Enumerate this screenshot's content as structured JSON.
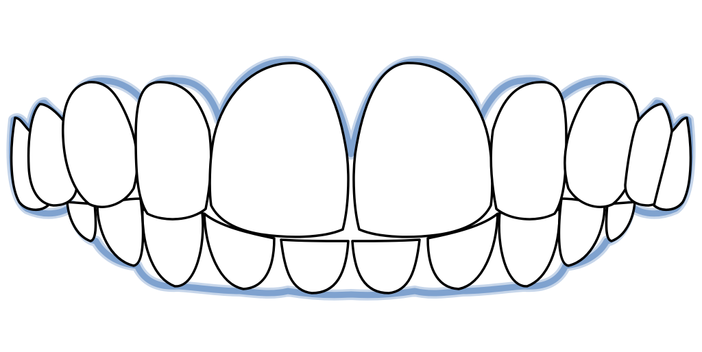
{
  "illustration": {
    "subject": "teeth-icon",
    "colors": {
      "background": "#ffffff",
      "outline_glow": "#7fa2cf",
      "outline_glow_outer": "#c7d6ea",
      "tooth_fill": "#ffffff",
      "tooth_stroke": "#000000"
    }
  }
}
